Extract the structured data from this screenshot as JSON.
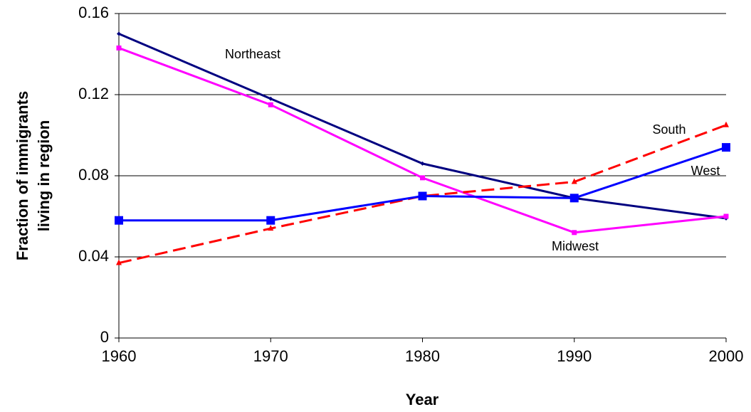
{
  "chart_data": {
    "type": "line",
    "xlabel": "Year",
    "ylabel": [
      "Fraction of immigrants",
      "living in region"
    ],
    "x": [
      1960,
      1970,
      1980,
      1990,
      2000
    ],
    "xlim": [
      1960,
      2000
    ],
    "xticks": [
      1960,
      1970,
      1980,
      1990,
      2000
    ],
    "ylim": [
      0,
      0.16
    ],
    "yticks": [
      0,
      0.04,
      0.08,
      0.12,
      0.16
    ],
    "grid": true,
    "series": [
      {
        "name": "Northeast",
        "color": "#000080",
        "marker": "diamond",
        "dashed": false,
        "values": [
          0.15,
          0.118,
          0.086,
          0.069,
          0.059
        ]
      },
      {
        "name": "Midwest",
        "color": "#ff00ff",
        "marker": "square-small",
        "dashed": false,
        "values": [
          0.143,
          0.115,
          0.079,
          0.052,
          0.06
        ]
      },
      {
        "name": "South",
        "color": "#ff0000",
        "marker": "triangle",
        "dashed": true,
        "values": [
          0.037,
          0.054,
          0.07,
          0.077,
          0.105
        ]
      },
      {
        "name": "West",
        "color": "#0000ff",
        "marker": "square",
        "dashed": false,
        "values": [
          0.058,
          0.058,
          0.07,
          0.069,
          0.094
        ]
      }
    ]
  }
}
